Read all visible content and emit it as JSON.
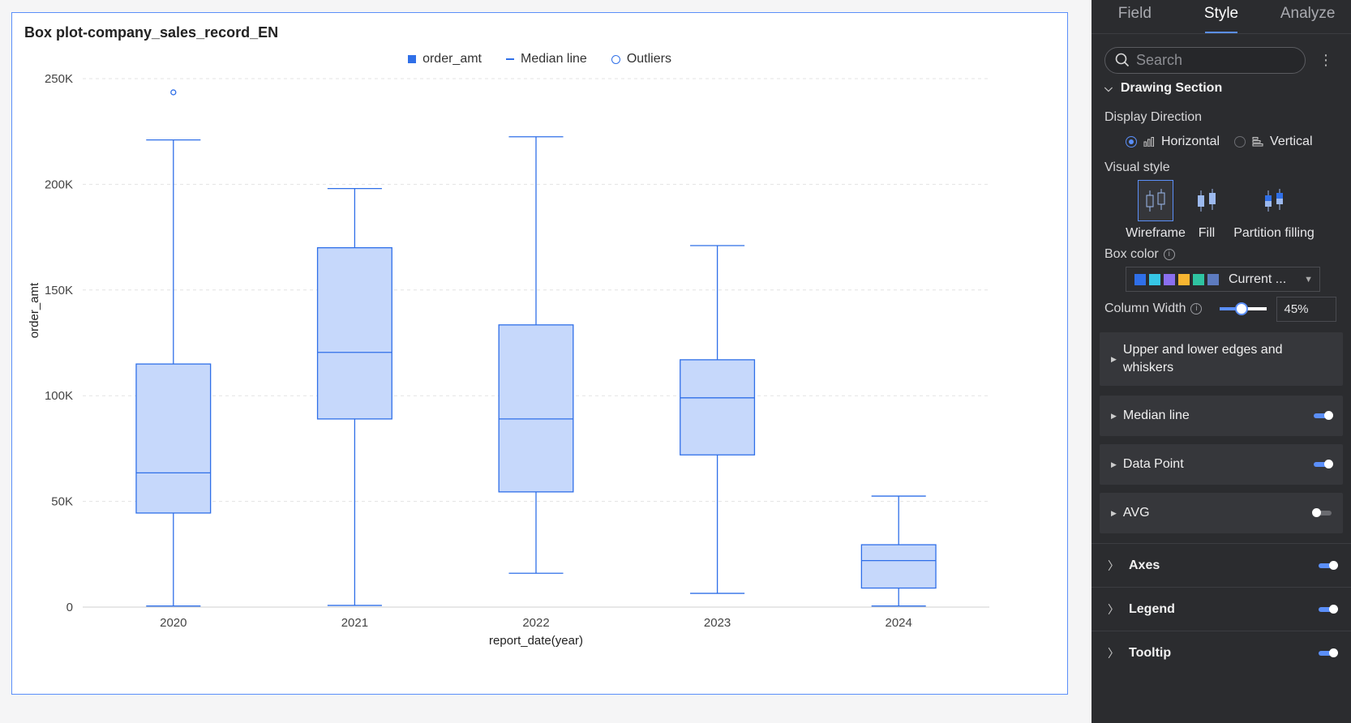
{
  "chart": {
    "title": "Box plot-company_sales_record_EN",
    "legend": [
      {
        "label": "order_amt",
        "marker": "square"
      },
      {
        "label": "Median line",
        "marker": "line"
      },
      {
        "label": "Outliers",
        "marker": "circle"
      }
    ],
    "accent_color": "#2f6fe8",
    "box_fill": "#c6d8fb"
  },
  "chart_data": {
    "type": "box",
    "title": "Box plot-company_sales_record_EN",
    "xlabel": "report_date(year)",
    "ylabel": "order_amt",
    "categories": [
      "2020",
      "2021",
      "2022",
      "2023",
      "2024"
    ],
    "ylim": [
      0,
      250000
    ],
    "yticks": [
      0,
      50000,
      100000,
      150000,
      200000,
      250000
    ],
    "ytick_labels": [
      "0",
      "50K",
      "100K",
      "150K",
      "200K",
      "250K"
    ],
    "grid": true,
    "legend_position": "top-center",
    "series": [
      {
        "name": "order_amt",
        "boxes": [
          {
            "category": "2020",
            "min": 500,
            "q1": 44500,
            "median": 63500,
            "q3": 115000,
            "max": 221000,
            "outliers": [
              243500
            ]
          },
          {
            "category": "2021",
            "min": 800,
            "q1": 89000,
            "median": 120500,
            "q3": 170000,
            "max": 198000,
            "outliers": []
          },
          {
            "category": "2022",
            "min": 16000,
            "q1": 54500,
            "median": 89000,
            "q3": 133500,
            "max": 222500,
            "outliers": []
          },
          {
            "category": "2023",
            "min": 6500,
            "q1": 72000,
            "median": 99000,
            "q3": 117000,
            "max": 171000,
            "outliers": []
          },
          {
            "category": "2024",
            "min": 500,
            "q1": 9000,
            "median": 22000,
            "q3": 29500,
            "max": 52500,
            "outliers": []
          }
        ]
      }
    ]
  },
  "panel": {
    "tabs": [
      {
        "label": "Field",
        "active": false
      },
      {
        "label": "Style",
        "active": true
      },
      {
        "label": "Analyze",
        "active": false
      }
    ],
    "search_placeholder": "Search",
    "drawing_section": "Drawing Section",
    "display_direction_label": "Display Direction",
    "direction_options": [
      {
        "label": "Horizontal",
        "selected": true
      },
      {
        "label": "Vertical",
        "selected": false
      }
    ],
    "visual_style_label": "Visual style",
    "visual_styles": [
      {
        "label": "Wireframe",
        "selected": true
      },
      {
        "label": "Fill",
        "selected": false
      },
      {
        "label": "Partition filling",
        "selected": false
      }
    ],
    "box_color_label": "Box color",
    "box_color_value": "Current ...",
    "palette": [
      "#2f6fe8",
      "#36c6e6",
      "#8a6ff0",
      "#f7b531",
      "#2fc4a2",
      "#5d7bbf"
    ],
    "column_width_label": "Column Width",
    "column_width_value": "45%",
    "column_width_fraction": 0.45,
    "subsections": [
      {
        "label": "Upper and lower edges and whiskers",
        "toggle": null
      },
      {
        "label": "Median line",
        "toggle": true
      },
      {
        "label": "Data Point",
        "toggle": true
      },
      {
        "label": "AVG",
        "toggle": false
      }
    ],
    "bottom_sections": [
      {
        "label": "Axes",
        "toggle": true
      },
      {
        "label": "Legend",
        "toggle": true
      },
      {
        "label": "Tooltip",
        "toggle": true
      }
    ]
  }
}
